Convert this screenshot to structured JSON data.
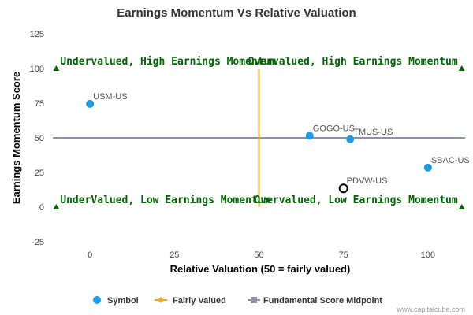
{
  "chart_data": {
    "type": "scatter",
    "title": "Earnings Momentum Vs Relative Valuation",
    "xlabel": "Relative Valuation (50 = fairly valued)",
    "ylabel": "Earnings Momentum Score",
    "xlim": [
      -11,
      111
    ],
    "ylim": [
      -25,
      125
    ],
    "xticks": [
      "0",
      "25",
      "50",
      "75",
      "100"
    ],
    "yticks": [
      "-25",
      "0",
      "25",
      "50",
      "75",
      "100",
      "125"
    ],
    "series": [
      {
        "name": "Symbol",
        "color": "#1f9ce8",
        "points": [
          {
            "label": "USM-US",
            "x": 0,
            "y": 74.5,
            "style": "filled"
          },
          {
            "label": "GOGO-US",
            "x": 65,
            "y": 51.5,
            "style": "filled"
          },
          {
            "label": "TMUS-US",
            "x": 77,
            "y": 49,
            "style": "filled"
          },
          {
            "label": "SBAC-US",
            "x": 100,
            "y": 28.5,
            "style": "filled"
          },
          {
            "label": "PDVW-US",
            "x": 75,
            "y": 13.5,
            "style": "hollow"
          }
        ]
      },
      {
        "name": "Fairly Valued",
        "color": "#f5a623",
        "x": 50
      },
      {
        "name": "Fundamental Score Midpoint",
        "color": "#8a94a6",
        "y": 50
      }
    ],
    "annotations": [
      {
        "text": "Undervalued, High Earnings Momentum",
        "x": -10,
        "y": 100
      },
      {
        "text": "Overvalued, High Earnings Momentum",
        "x": 110,
        "y": 100
      },
      {
        "text": "UnderValued, Low Earnings Momentum",
        "x": -10,
        "y": 0
      },
      {
        "text": "Overvalued, Low Earnings Momentum",
        "x": 110,
        "y": 0
      }
    ],
    "grid": false,
    "legend_position": "bottom"
  },
  "credit": "www.capitalcube.com"
}
